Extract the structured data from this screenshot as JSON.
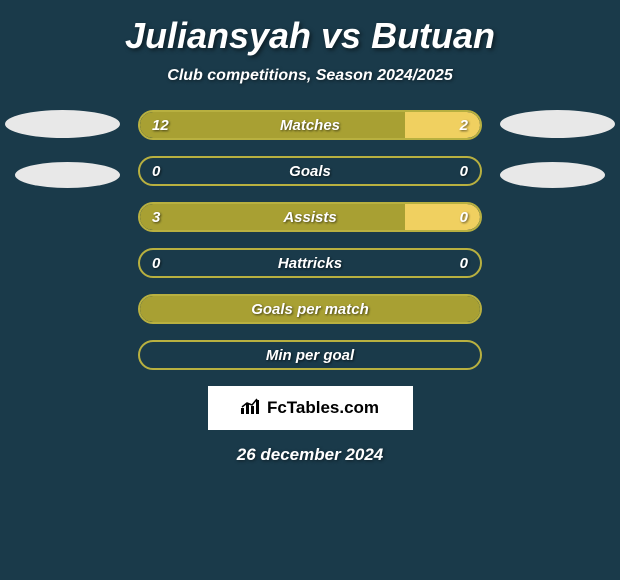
{
  "title": "Juliansyah vs Butuan",
  "subtitle": "Club competitions, Season 2024/2025",
  "date": "26 december 2024",
  "logo_text": "FcTables.com",
  "background_color": "#1a3a4a",
  "colors": {
    "olive": "#a8a033",
    "olive_border": "#b8b040",
    "yellow": "#f0d060",
    "text": "#ffffff",
    "ellipse": "#e8e8e8"
  },
  "stats": [
    {
      "label": "Matches",
      "left_value": "12",
      "right_value": "2",
      "left_fill_pct": 78,
      "right_fill_pct": 22,
      "left_color": "#a8a033",
      "right_color": "#f0d060",
      "border_color": "#b8b040"
    },
    {
      "label": "Goals",
      "left_value": "0",
      "right_value": "0",
      "left_fill_pct": 0,
      "right_fill_pct": 0,
      "left_color": "#a8a033",
      "right_color": "#f0d060",
      "border_color": "#b8b040"
    },
    {
      "label": "Assists",
      "left_value": "3",
      "right_value": "0",
      "left_fill_pct": 78,
      "right_fill_pct": 22,
      "left_color": "#a8a033",
      "right_color": "#f0d060",
      "border_color": "#b8b040"
    },
    {
      "label": "Hattricks",
      "left_value": "0",
      "right_value": "0",
      "left_fill_pct": 0,
      "right_fill_pct": 0,
      "left_color": "#a8a033",
      "right_color": "#f0d060",
      "border_color": "#b8b040"
    },
    {
      "label": "Goals per match",
      "left_value": "",
      "right_value": "",
      "left_fill_pct": 100,
      "right_fill_pct": 0,
      "left_color": "#a8a033",
      "right_color": "#f0d060",
      "border_color": "#b8b040",
      "full_fill": true
    },
    {
      "label": "Min per goal",
      "left_value": "",
      "right_value": "",
      "left_fill_pct": 0,
      "right_fill_pct": 0,
      "left_color": "#a8a033",
      "right_color": "#f0d060",
      "border_color": "#b8b040"
    }
  ]
}
